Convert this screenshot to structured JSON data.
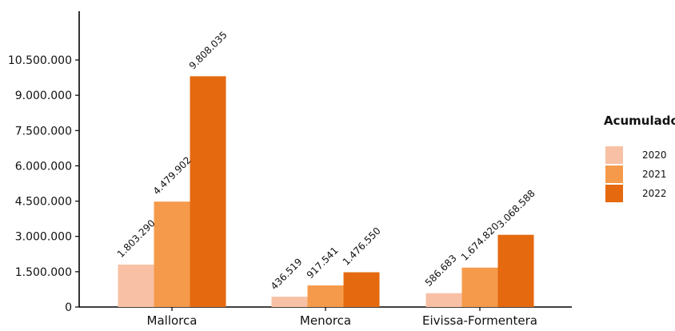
{
  "chart_data": {
    "type": "bar",
    "categories": [
      "Mallorca",
      "Menorca",
      "Eivissa-Formentera"
    ],
    "series": [
      {
        "name": "2020",
        "color": "#f8c1a5",
        "values": [
          1803290,
          436519,
          586683
        ],
        "labels": [
          "1.803.290",
          "436.519",
          "586.683"
        ]
      },
      {
        "name": "2021",
        "color": "#f59a4b",
        "values": [
          4479902,
          917541,
          1674820
        ],
        "labels": [
          "4.479.902",
          "917.541",
          "1.674.820"
        ]
      },
      {
        "name": "2022",
        "color": "#e4690f",
        "values": [
          9808035,
          1476550,
          3068588
        ],
        "labels": [
          "9.808.035",
          "1.476.550",
          "3.068.588"
        ]
      }
    ],
    "legend_title": "Acumulado",
    "legend_position": "right",
    "y_ticks": [
      0,
      1500000,
      3000000,
      4500000,
      6000000,
      7500000,
      9000000,
      10500000
    ],
    "y_tick_labels": [
      "0",
      "1.500.000",
      "3.000.000",
      "4.500.000",
      "6.000.000",
      "7.500.000",
      "9.000.000",
      "10.500.000"
    ],
    "ylim": [
      0,
      12000000
    ],
    "grid": false,
    "title": "",
    "xlabel": "",
    "ylabel": ""
  }
}
